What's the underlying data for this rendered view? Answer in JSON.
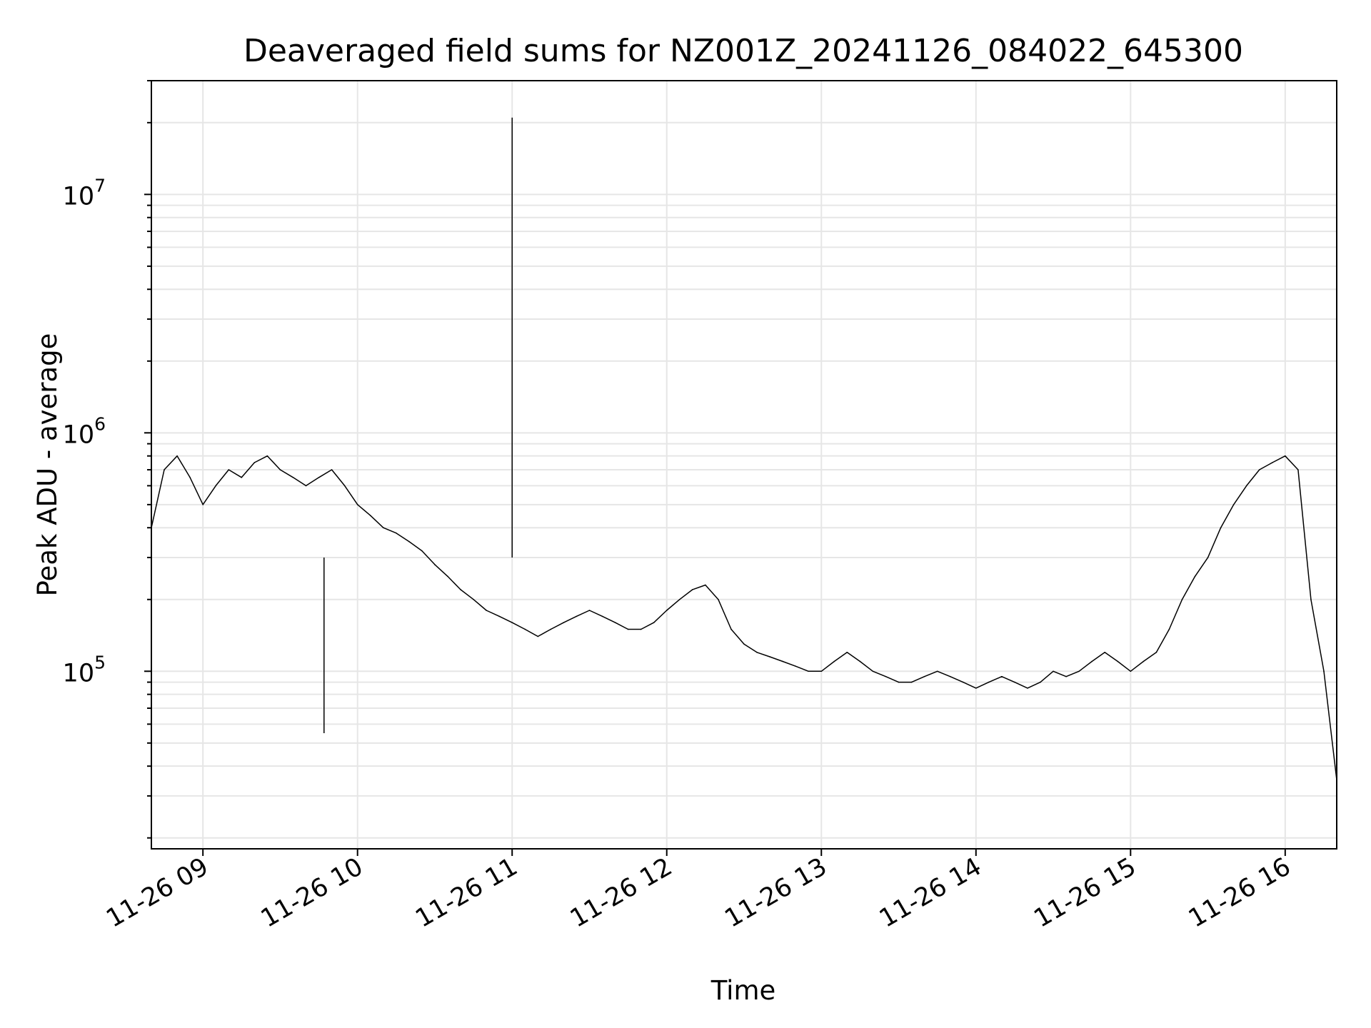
{
  "chart_data": {
    "type": "line",
    "title": "Deaveraged field sums for NZ001Z_20241126_084022_645300",
    "xlabel": "Time",
    "ylabel": "Peak ADU - average",
    "yscale": "log",
    "xlim": [
      "2024-11-26 08:40",
      "2024-11-26 16:20"
    ],
    "ylim": [
      18000,
      30000000
    ],
    "grid": true,
    "line_color": "#000000",
    "x_ticks": [
      {
        "value": "2024-11-26 09:00",
        "label": "11-26 09"
      },
      {
        "value": "2024-11-26 10:00",
        "label": "11-26 10"
      },
      {
        "value": "2024-11-26 11:00",
        "label": "11-26 11"
      },
      {
        "value": "2024-11-26 12:00",
        "label": "11-26 12"
      },
      {
        "value": "2024-11-26 13:00",
        "label": "11-26 13"
      },
      {
        "value": "2024-11-26 14:00",
        "label": "11-26 14"
      },
      {
        "value": "2024-11-26 15:00",
        "label": "11-26 15"
      },
      {
        "value": "2024-11-26 16:00",
        "label": "11-26 16"
      }
    ],
    "y_ticks": [
      {
        "value": 100000,
        "base": "10",
        "exp": "5"
      },
      {
        "value": 1000000,
        "base": "10",
        "exp": "6"
      },
      {
        "value": 10000000,
        "base": "10",
        "exp": "7"
      }
    ],
    "series": [
      {
        "x": [
          "2024-11-26 08:40",
          "2024-11-26 08:45",
          "2024-11-26 08:50",
          "2024-11-26 08:55",
          "2024-11-26 09:00",
          "2024-11-26 09:05",
          "2024-11-26 09:10",
          "2024-11-26 09:15",
          "2024-11-26 09:20",
          "2024-11-26 09:25",
          "2024-11-26 09:30",
          "2024-11-26 09:35",
          "2024-11-26 09:40",
          "2024-11-26 09:45",
          "2024-11-26 09:50",
          "2024-11-26 09:55",
          "2024-11-26 10:00",
          "2024-11-26 10:05",
          "2024-11-26 10:10",
          "2024-11-26 10:15",
          "2024-11-26 10:20",
          "2024-11-26 10:25",
          "2024-11-26 10:30",
          "2024-11-26 10:35",
          "2024-11-26 10:40",
          "2024-11-26 10:45",
          "2024-11-26 10:50",
          "2024-11-26 10:55",
          "2024-11-26 11:00",
          "2024-11-26 11:05",
          "2024-11-26 11:10",
          "2024-11-26 11:15",
          "2024-11-26 11:20",
          "2024-11-26 11:25",
          "2024-11-26 11:30",
          "2024-11-26 11:35",
          "2024-11-26 11:40",
          "2024-11-26 11:45",
          "2024-11-26 11:50",
          "2024-11-26 11:55",
          "2024-11-26 12:00",
          "2024-11-26 12:05",
          "2024-11-26 12:10",
          "2024-11-26 12:15",
          "2024-11-26 12:20",
          "2024-11-26 12:25",
          "2024-11-26 12:30",
          "2024-11-26 12:35",
          "2024-11-26 12:40",
          "2024-11-26 12:45",
          "2024-11-26 12:50",
          "2024-11-26 12:55",
          "2024-11-26 13:00",
          "2024-11-26 13:05",
          "2024-11-26 13:10",
          "2024-11-26 13:15",
          "2024-11-26 13:20",
          "2024-11-26 13:25",
          "2024-11-26 13:30",
          "2024-11-26 13:35",
          "2024-11-26 13:40",
          "2024-11-26 13:45",
          "2024-11-26 13:50",
          "2024-11-26 13:55",
          "2024-11-26 14:00",
          "2024-11-26 14:05",
          "2024-11-26 14:10",
          "2024-11-26 14:15",
          "2024-11-26 14:20",
          "2024-11-26 14:25",
          "2024-11-26 14:30",
          "2024-11-26 14:35",
          "2024-11-26 14:40",
          "2024-11-26 14:45",
          "2024-11-26 14:50",
          "2024-11-26 14:55",
          "2024-11-26 15:00",
          "2024-11-26 15:05",
          "2024-11-26 15:10",
          "2024-11-26 15:15",
          "2024-11-26 15:20",
          "2024-11-26 15:25",
          "2024-11-26 15:30",
          "2024-11-26 15:35",
          "2024-11-26 15:40",
          "2024-11-26 15:45",
          "2024-11-26 15:50",
          "2024-11-26 15:55",
          "2024-11-26 16:00",
          "2024-11-26 16:05",
          "2024-11-26 16:10",
          "2024-11-26 16:15",
          "2024-11-26 16:20"
        ],
        "values": [
          400000,
          700000,
          800000,
          650000,
          500000,
          600000,
          700000,
          650000,
          750000,
          800000,
          700000,
          650000,
          600000,
          650000,
          700000,
          600000,
          500000,
          450000,
          400000,
          380000,
          350000,
          320000,
          280000,
          250000,
          220000,
          200000,
          180000,
          170000,
          160000,
          150000,
          140000,
          150000,
          160000,
          170000,
          180000,
          170000,
          160000,
          150000,
          150000,
          160000,
          180000,
          200000,
          220000,
          230000,
          200000,
          150000,
          130000,
          120000,
          115000,
          110000,
          105000,
          100000,
          100000,
          110000,
          120000,
          110000,
          100000,
          95000,
          90000,
          90000,
          95000,
          100000,
          95000,
          90000,
          85000,
          90000,
          95000,
          90000,
          85000,
          90000,
          100000,
          95000,
          100000,
          110000,
          120000,
          110000,
          100000,
          110000,
          120000,
          150000,
          200000,
          250000,
          300000,
          400000,
          500000,
          600000,
          700000,
          750000,
          800000,
          700000,
          200000,
          100000,
          35000
        ]
      }
    ],
    "extremes": [
      {
        "x": "2024-11-26 11:00",
        "value": 21000000
      },
      {
        "x": "2024-11-26 09:47",
        "value": 55000
      },
      {
        "x": "2024-11-26 16:20",
        "value": 25000
      }
    ]
  }
}
